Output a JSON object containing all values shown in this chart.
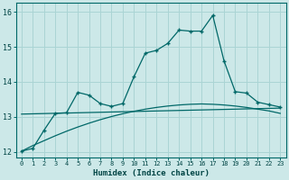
{
  "xlabel": "Humidex (Indice chaleur)",
  "bg_color": "#cce8e8",
  "grid_color": "#aad4d4",
  "line_color": "#006868",
  "xlim": [
    -0.5,
    23.5
  ],
  "ylim": [
    11.85,
    16.25
  ],
  "yticks": [
    12,
    13,
    14,
    15,
    16
  ],
  "xticks": [
    0,
    1,
    2,
    3,
    4,
    5,
    6,
    7,
    8,
    9,
    10,
    11,
    12,
    13,
    14,
    15,
    16,
    17,
    18,
    19,
    20,
    21,
    22,
    23
  ],
  "main_x": [
    0,
    1,
    2,
    3,
    4,
    5,
    6,
    7,
    8,
    9,
    10,
    11,
    12,
    13,
    14,
    15,
    16,
    17,
    18,
    19,
    20,
    21,
    22,
    23
  ],
  "main_y": [
    12.02,
    12.1,
    12.62,
    13.1,
    13.12,
    13.7,
    13.62,
    13.38,
    13.3,
    13.38,
    14.15,
    14.82,
    14.9,
    15.1,
    15.48,
    15.45,
    15.45,
    15.9,
    14.6,
    13.72,
    13.68,
    13.42,
    13.35,
    13.28
  ],
  "line2_x": [
    0,
    23
  ],
  "line2_y": [
    13.08,
    13.25
  ],
  "line3_x": [
    0,
    1,
    2,
    3,
    4,
    5,
    6,
    7,
    8,
    9,
    10,
    11,
    12,
    13,
    14,
    15,
    16,
    17,
    18,
    19,
    20,
    21,
    22,
    23
  ],
  "line3_y": [
    12.02,
    12.18,
    12.32,
    12.46,
    12.59,
    12.71,
    12.82,
    12.92,
    13.01,
    13.09,
    13.16,
    13.22,
    13.27,
    13.31,
    13.34,
    13.36,
    13.37,
    13.36,
    13.34,
    13.31,
    13.27,
    13.22,
    13.17,
    13.1
  ]
}
